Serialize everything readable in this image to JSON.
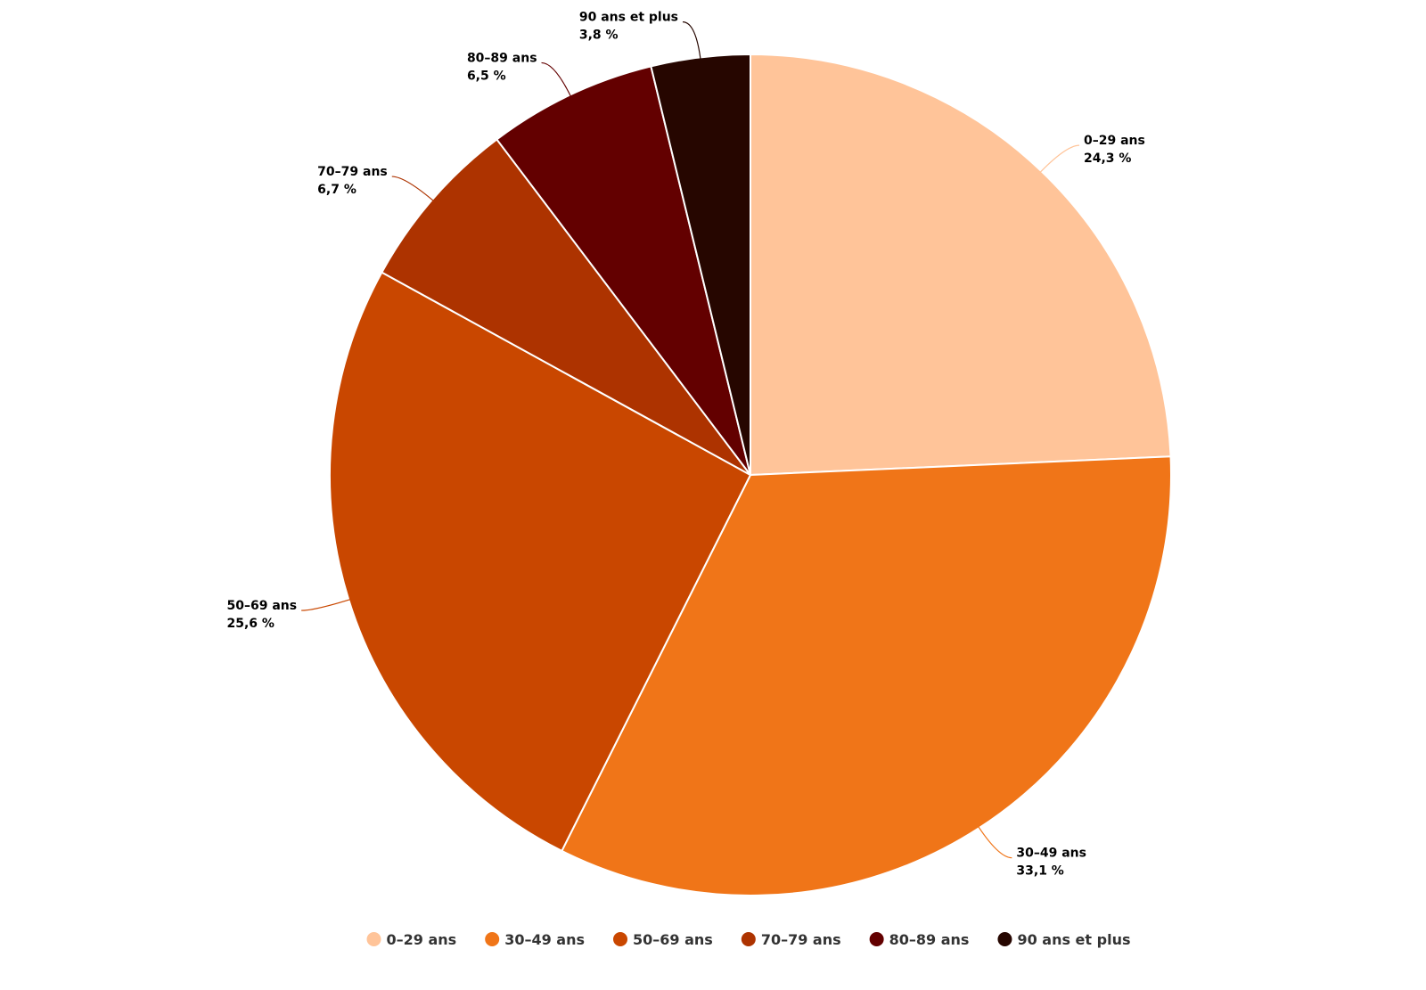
{
  "chart_data": {
    "type": "pie",
    "start_angle": "top, clockwise",
    "legend_position": "bottom",
    "slices": [
      {
        "label": "0–29 ans",
        "value": 24.3,
        "value_text": "24,3 %",
        "color": "#FFC499"
      },
      {
        "label": "30–49 ans",
        "value": 33.1,
        "value_text": "33,1 %",
        "color": "#F07518"
      },
      {
        "label": "50–69 ans",
        "value": 25.6,
        "value_text": "25,6 %",
        "color": "#C94700"
      },
      {
        "label": "70–79 ans",
        "value": 6.7,
        "value_text": "6,7 %",
        "color": "#AD3300"
      },
      {
        "label": "80–89 ans",
        "value": 6.5,
        "value_text": "6,5 %",
        "color": "#630000"
      },
      {
        "label": "90 ans et plus",
        "value": 3.8,
        "value_text": "3,8 %",
        "color": "#260600"
      }
    ]
  }
}
